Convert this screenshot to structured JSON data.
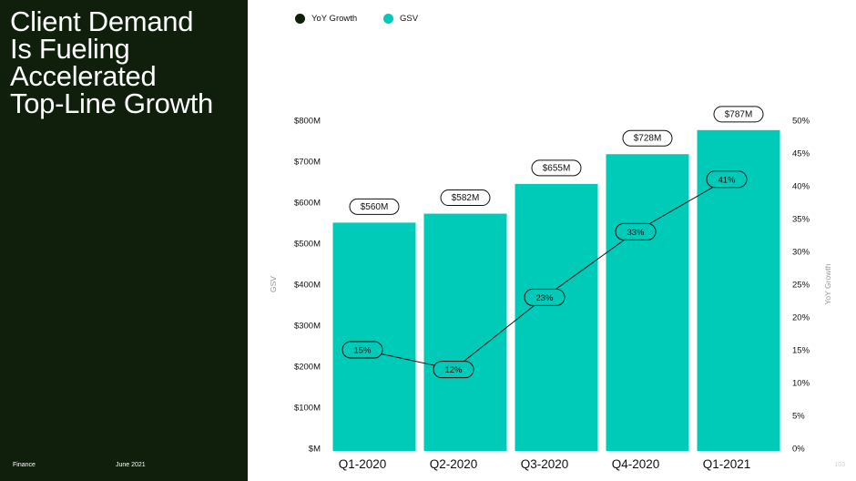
{
  "slide": {
    "title_lines": [
      "Client Demand",
      "Is Fueling",
      "Accelerated",
      "Top-Line Growth"
    ],
    "footer_section": "Finance",
    "footer_date": "June 2021",
    "page_number": "103"
  },
  "colors": {
    "panel_bg": "#0f1f0c",
    "bar": "#00cbb8",
    "line": "#111111",
    "legend_yoy": "#0f1f0c",
    "legend_gsv": "#00cbb8"
  },
  "chart_data": {
    "type": "bar",
    "title": "",
    "categories": [
      "Q1-2020",
      "Q2-2020",
      "Q3-2020",
      "Q4-2020",
      "Q1-2021"
    ],
    "series": [
      {
        "name": "GSV",
        "type": "bar",
        "axis": "left",
        "values": [
          560,
          582,
          655,
          728,
          787
        ],
        "labels": [
          "$560M",
          "$582M",
          "$655M",
          "$728M",
          "$787M"
        ]
      },
      {
        "name": "YoY Growth",
        "type": "line",
        "axis": "right",
        "values": [
          15,
          12,
          23,
          33,
          41
        ],
        "labels": [
          "15%",
          "12%",
          "23%",
          "33%",
          "41%"
        ]
      }
    ],
    "ylabel": "GSV",
    "ylabel_right": "YoY Growth",
    "ylim": [
      0,
      800
    ],
    "ylim_right": [
      0,
      50
    ],
    "yticks": [
      "$M",
      "$100M",
      "$200M",
      "$300M",
      "$400M",
      "$500M",
      "$600M",
      "$700M",
      "$800M"
    ],
    "yticks_right": [
      "0%",
      "5%",
      "10%",
      "15%",
      "20%",
      "25%",
      "30%",
      "35%",
      "40%",
      "45%",
      "50%"
    ],
    "legend": [
      "YoY Growth",
      "GSV"
    ],
    "legend_position": "top-left",
    "grid": false
  }
}
